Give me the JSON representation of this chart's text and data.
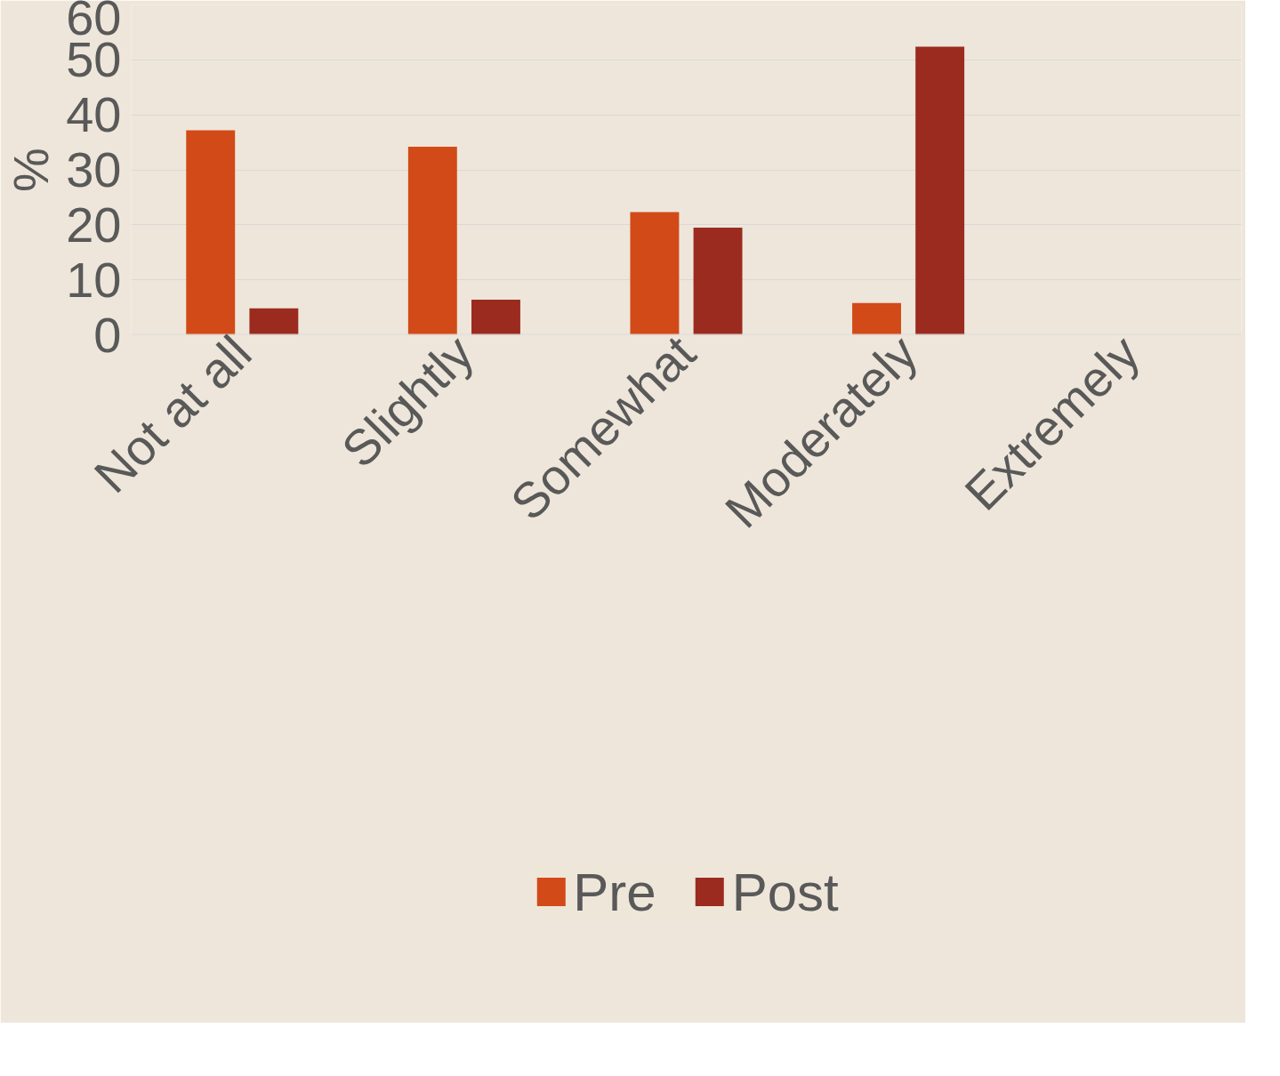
{
  "chart_data": {
    "type": "bar",
    "ylabel": "%",
    "categories": [
      "Not at all",
      "Slightly",
      "Somewhat",
      "Moderately",
      "Extremely"
    ],
    "series": [
      {
        "name": "Pre",
        "color": "#d24a18",
        "values": [
          37.2,
          34.2,
          22.3,
          5.8,
          0
        ]
      },
      {
        "name": "Post",
        "color": "#9b2b1f",
        "values": [
          4.8,
          6.4,
          19.5,
          52.4,
          null
        ]
      }
    ],
    "ylim": [
      0,
      60
    ],
    "yticks": [
      0,
      10,
      20,
      30,
      40,
      50,
      60
    ],
    "grid": "y",
    "legend": "bottom"
  }
}
